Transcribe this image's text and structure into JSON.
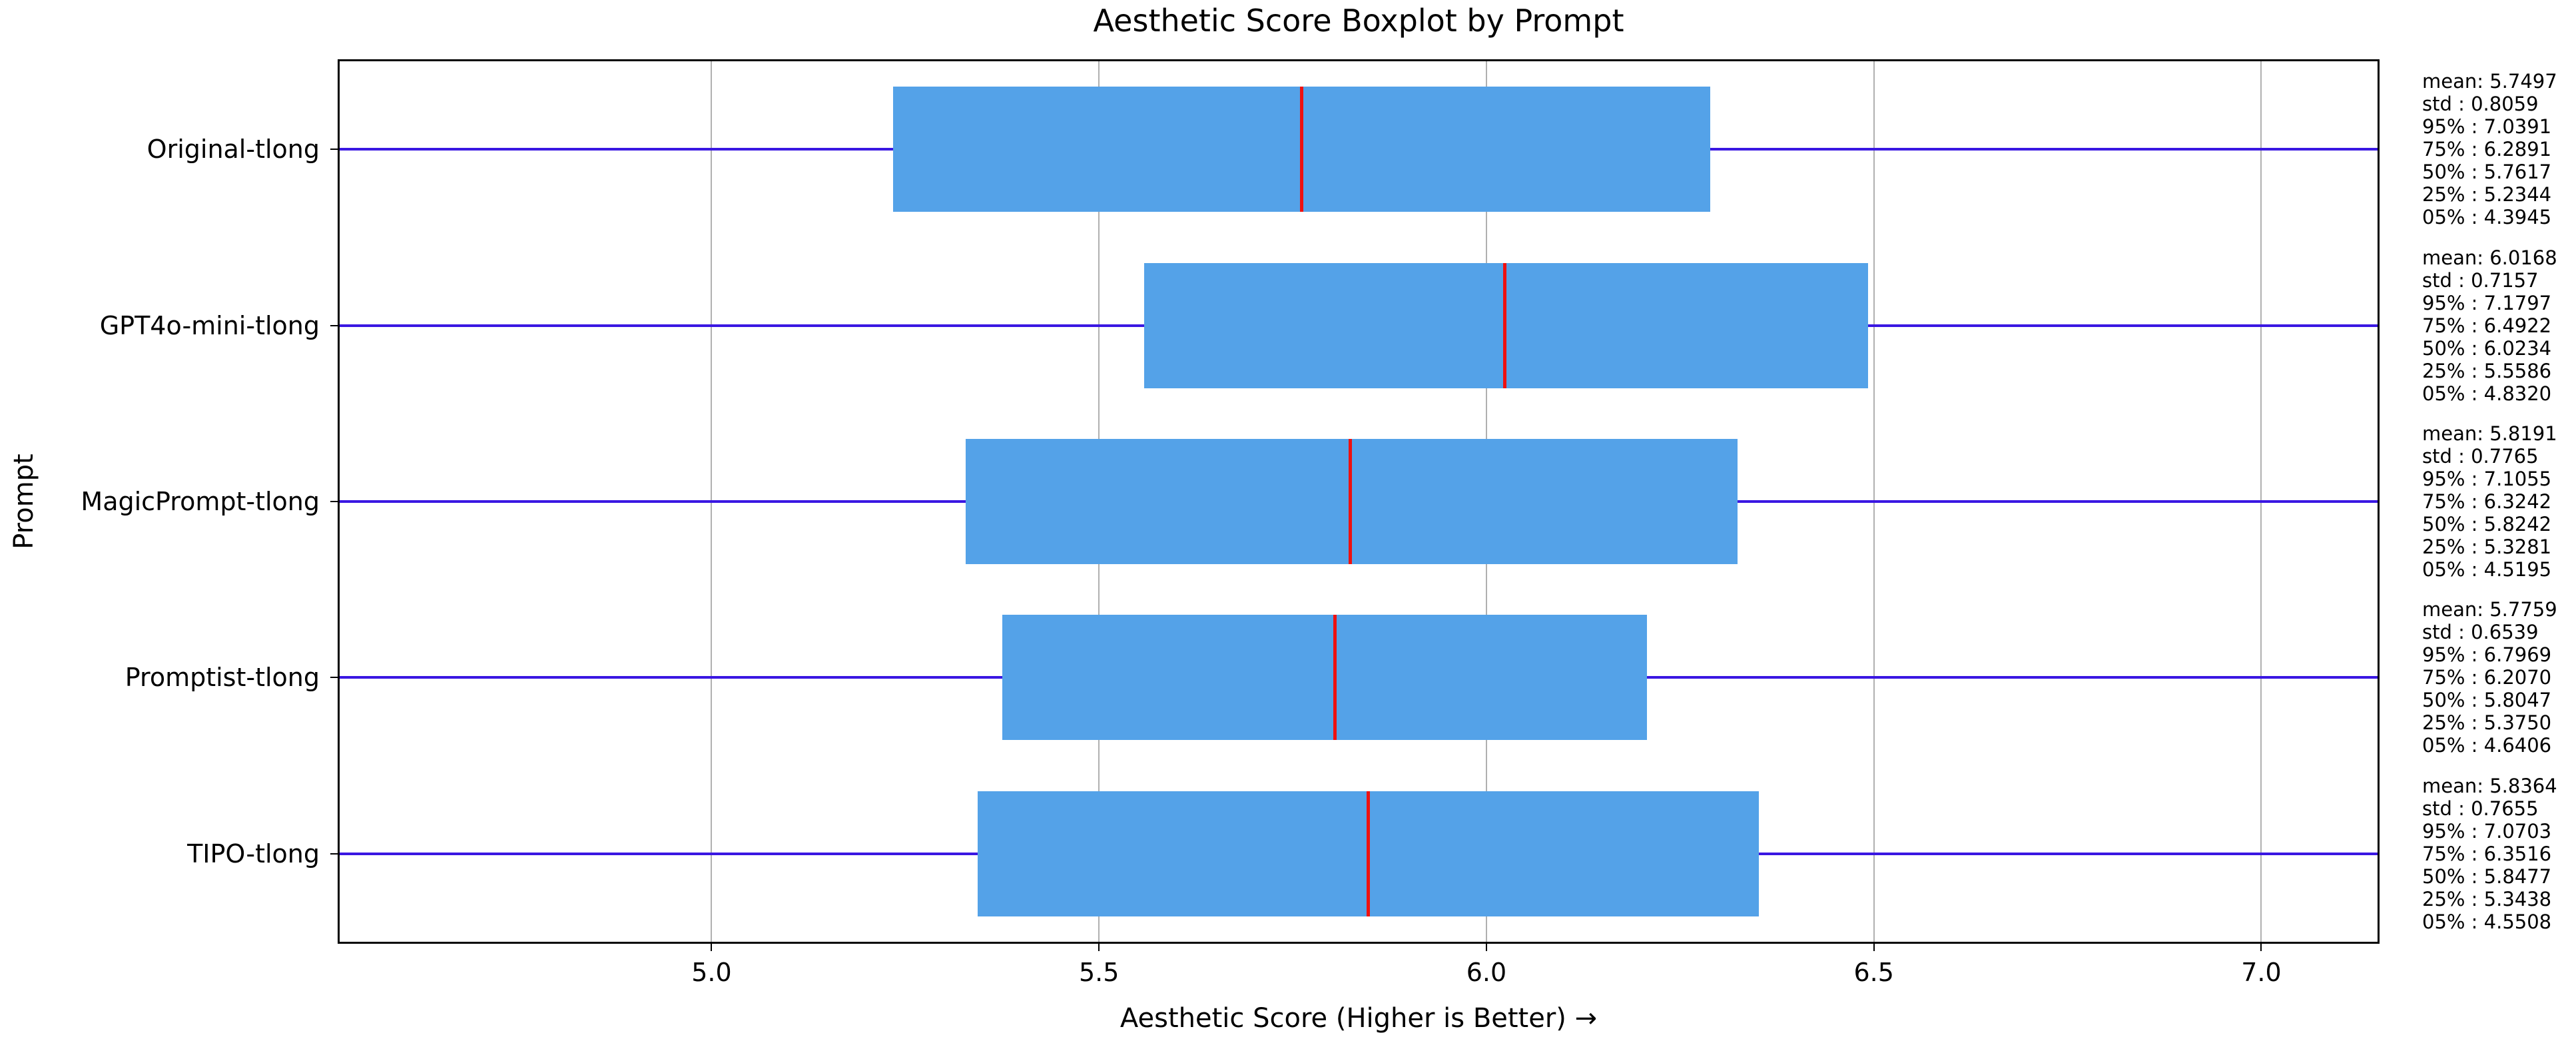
{
  "title": "Aesthetic Score Boxplot by Prompt",
  "xlabel": "Aesthetic Score (Higher is Better) →",
  "ylabel": "Prompt",
  "colors": {
    "box_fill": "#54a2e8",
    "median": "#ee1111",
    "whisker": "#3a17e2",
    "grid": "#b0b0b0",
    "axis": "#000000"
  },
  "chart_data": {
    "type": "boxplot",
    "orientation": "horizontal",
    "title": "Aesthetic Score Boxplot by Prompt",
    "xlabel": "Aesthetic Score (Higher is Better) →",
    "ylabel": "Prompt",
    "grid": true,
    "xlim": [
      4.52,
      7.15
    ],
    "xticks": [
      5.0,
      5.5,
      6.0,
      6.5,
      7.0
    ],
    "categories": [
      "Original-tlong",
      "GPT4o-mini-tlong",
      "MagicPrompt-tlong",
      "Promptist-tlong",
      "TIPO-tlong"
    ],
    "whiskers_clipped_to_xlim": true,
    "stats_order": [
      "mean",
      "std",
      "p95",
      "p75",
      "p50",
      "p25",
      "p05"
    ],
    "stats_labels": {
      "mean": "mean:",
      "std": "std :",
      "p95": "95% :",
      "p75": "75% :",
      "p50": "50% :",
      "p25": "25% :",
      "p05": "05% :"
    },
    "series": [
      {
        "name": "Original-tlong",
        "mean": 5.7497,
        "std": 0.8059,
        "p95": 7.0391,
        "p75": 6.2891,
        "p50": 5.7617,
        "p25": 5.2344,
        "p05": 4.3945
      },
      {
        "name": "GPT4o-mini-tlong",
        "mean": 6.0168,
        "std": 0.7157,
        "p95": 7.1797,
        "p75": 6.4922,
        "p50": 6.0234,
        "p25": 5.5586,
        "p05": 4.832
      },
      {
        "name": "MagicPrompt-tlong",
        "mean": 5.8191,
        "std": 0.7765,
        "p95": 7.1055,
        "p75": 6.3242,
        "p50": 5.8242,
        "p25": 5.3281,
        "p05": 4.5195
      },
      {
        "name": "Promptist-tlong",
        "mean": 5.7759,
        "std": 0.6539,
        "p95": 6.7969,
        "p75": 6.207,
        "p50": 5.8047,
        "p25": 5.375,
        "p05": 4.6406
      },
      {
        "name": "TIPO-tlong",
        "mean": 5.8364,
        "std": 0.7655,
        "p95": 7.0703,
        "p75": 6.3516,
        "p50": 5.8477,
        "p25": 5.3438,
        "p05": 4.5508
      }
    ]
  }
}
